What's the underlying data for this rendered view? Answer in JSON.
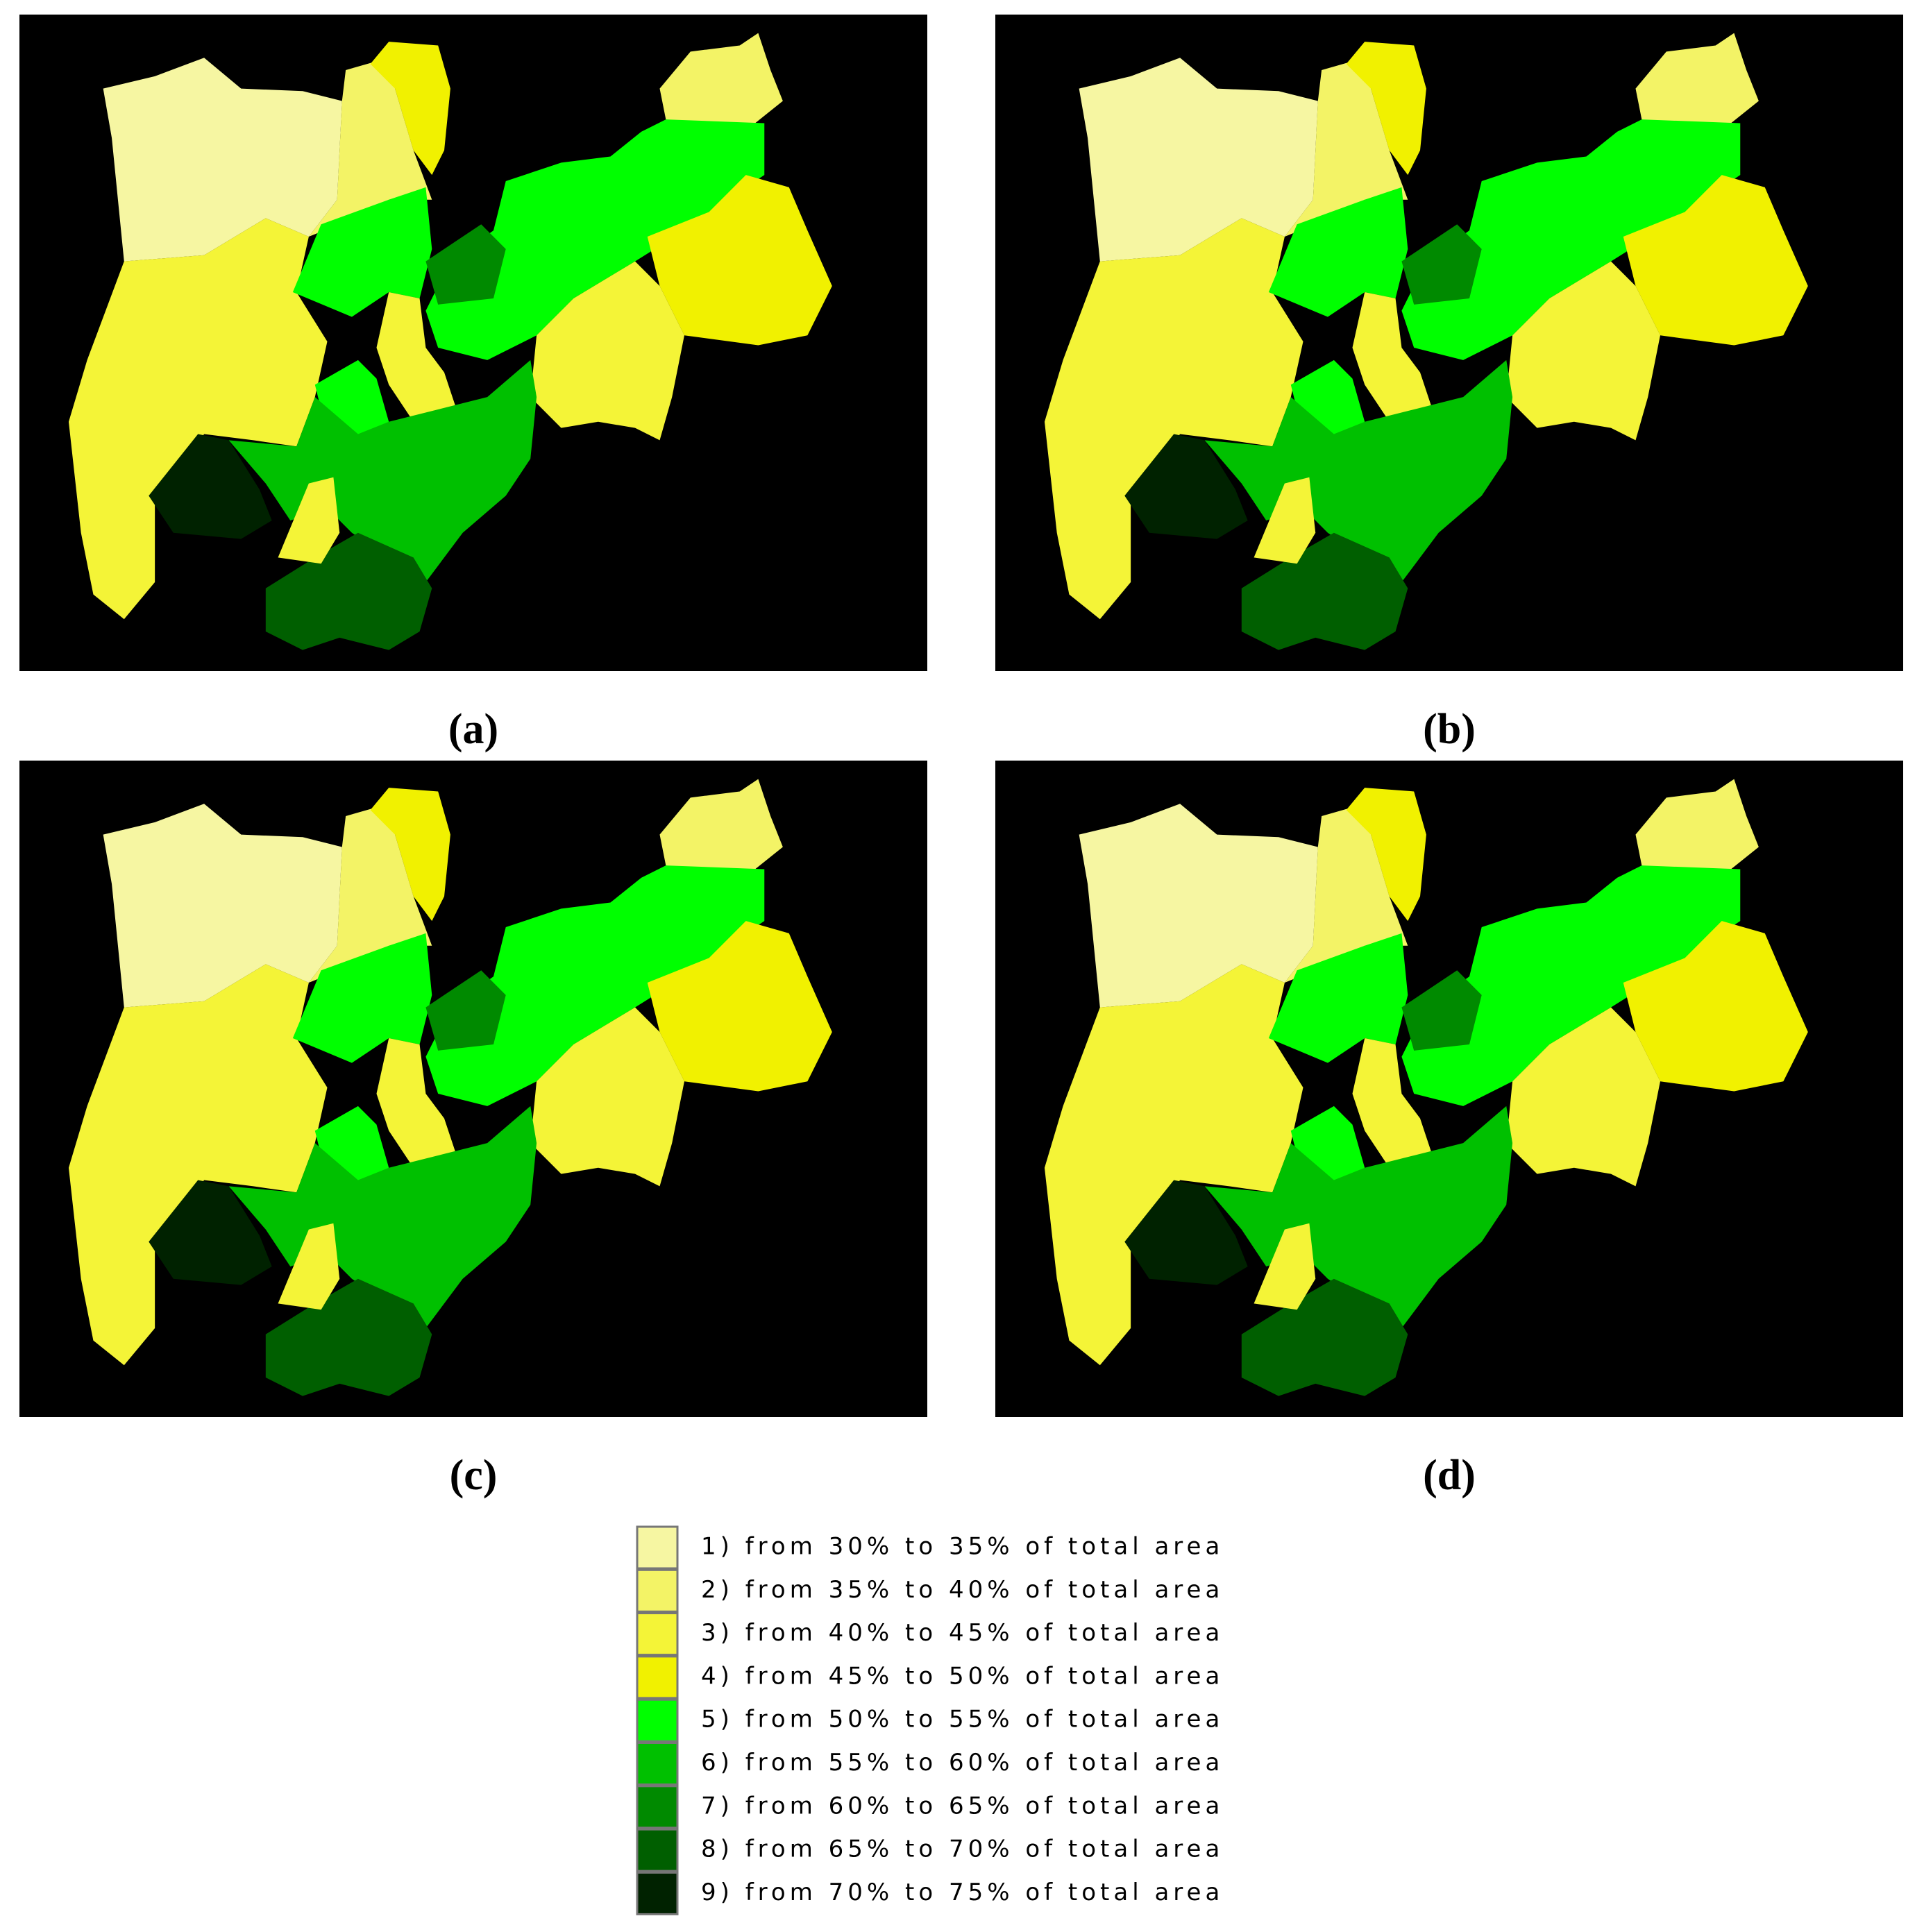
{
  "panels": [
    {
      "label": "(a)"
    },
    {
      "label": "(b)"
    },
    {
      "label": "(c)"
    },
    {
      "label": "(d)"
    }
  ],
  "legend": {
    "items": [
      {
        "label": "1) from 30% to 35% of total area",
        "color": "#f6f6a2"
      },
      {
        "label": "2) from 35% to 40% of total area",
        "color": "#f3f366"
      },
      {
        "label": "3) from 40% to 45% of total area",
        "color": "#f4f437"
      },
      {
        "label": "4) from 45% to 50% of total area",
        "color": "#f1f100"
      },
      {
        "label": "5) from 50% to 55% of total area",
        "color": "#00ff00"
      },
      {
        "label": "6) from 55% to 60% of total area",
        "color": "#00c000"
      },
      {
        "label": "7) from 60% to 65% of total area",
        "color": "#008a00"
      },
      {
        "label": "8) from 65% to 70% of total area",
        "color": "#005f00"
      },
      {
        "label": "9) from 70% to 75% of total area",
        "color": "#002200"
      }
    ]
  }
}
